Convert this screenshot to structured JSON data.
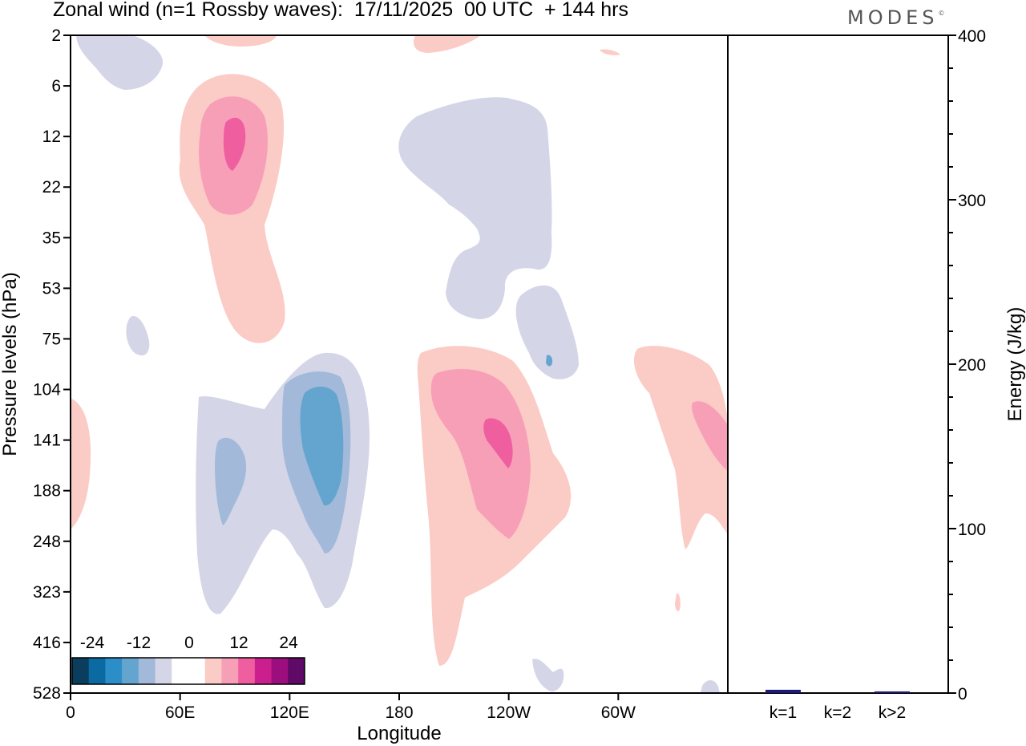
{
  "title": "Zonal wind (n=1 Rossby waves):  17/11/2025  00 UTC  + 144 hrs",
  "brand": "MODES",
  "brand_mark": "©",
  "chart_data": [
    {
      "type": "heatmap",
      "xlabel": "Longitude",
      "ylabel": "Pressure levels (hPa)",
      "x_ticks": [
        "0",
        "60E",
        "120E",
        "180",
        "120W",
        "60W"
      ],
      "x_range_deg": [
        0,
        360
      ],
      "y_ticks": [
        "2",
        "6",
        "12",
        "22",
        "35",
        "53",
        "75",
        "104",
        "141",
        "188",
        "248",
        "323",
        "416",
        "528"
      ],
      "colorbar": {
        "labels": [
          "-24",
          "-12",
          "0",
          "12",
          "24"
        ],
        "colors": [
          "#0b3d5e",
          "#0c6aa3",
          "#2c8ec9",
          "#64a5cf",
          "#a2b9d9",
          "#d4d6e8",
          "#ffffff",
          "#ffffff",
          "#fbcbc6",
          "#f89fb8",
          "#ef5fa0",
          "#cb1f8d",
          "#9c0e7d",
          "#5e0a66"
        ]
      },
      "features": [
        {
          "sign": "positive",
          "max_level": 3,
          "lon_center": 90,
          "level_center": "12"
        },
        {
          "sign": "positive",
          "max_level": 3,
          "lon_center": 225,
          "level_center": "141"
        },
        {
          "sign": "positive",
          "max_level": 2,
          "lon_center": 355,
          "level_center": "141"
        },
        {
          "sign": "negative",
          "max_level": 3,
          "lon_center": 135,
          "level_center": "141"
        },
        {
          "sign": "negative",
          "max_level": 1,
          "lon_center": 240,
          "level_center": "22"
        }
      ]
    },
    {
      "type": "bar",
      "categories": [
        "k=1",
        "k=2",
        "k>2"
      ],
      "values": [
        2,
        0,
        1
      ],
      "ylabel": "Energy (J/kg)",
      "ylim": [
        0,
        400
      ],
      "y_ticks": [
        "0",
        "100",
        "200",
        "300",
        "400"
      ],
      "bar_color": "#1a1a7a"
    }
  ]
}
